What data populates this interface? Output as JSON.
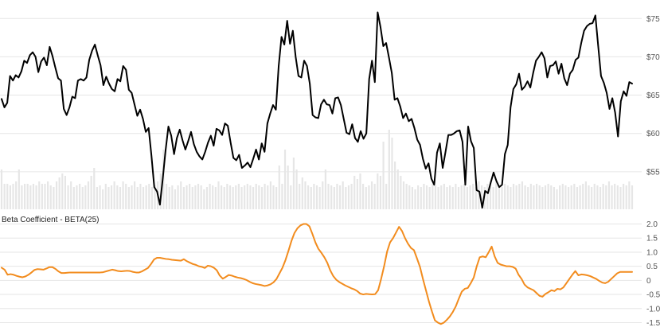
{
  "chart_data": [
    {
      "type": "line",
      "title": "",
      "y_unit": "$",
      "ylim": [
        50,
        77
      ],
      "yticks": [
        {
          "value": 55,
          "label": "$55"
        },
        {
          "value": 60,
          "label": "$60"
        },
        {
          "value": 65,
          "label": "$65"
        },
        {
          "value": 70,
          "label": "$70"
        },
        {
          "value": 75,
          "label": "$75"
        }
      ],
      "grid": true,
      "colors": {
        "price": "#000000",
        "volume": "#e6e6e6"
      },
      "price": [
        64.5,
        63.4,
        64.0,
        67.5,
        66.9,
        67.6,
        67.3,
        68.1,
        69.5,
        69.2,
        70.2,
        70.6,
        70.0,
        68.0,
        69.4,
        69.9,
        68.9,
        71.3,
        70.1,
        68.6,
        67.2,
        66.9,
        63.2,
        62.4,
        63.4,
        64.8,
        64.6,
        66.9,
        67.1,
        66.9,
        67.3,
        69.6,
        70.8,
        71.6,
        70.2,
        68.9,
        66.3,
        67.4,
        66.5,
        65.8,
        65.5,
        67.1,
        66.8,
        68.8,
        68.3,
        65.7,
        65.3,
        63.8,
        62.3,
        63.1,
        61.9,
        60.2,
        60.7,
        57.1,
        53.0,
        52.4,
        50.7,
        54.1,
        57.8,
        60.9,
        59.7,
        57.3,
        59.4,
        60.5,
        59.1,
        57.9,
        59.0,
        60.2,
        58.6,
        57.6,
        57.0,
        56.6,
        57.6,
        58.8,
        59.7,
        58.4,
        60.6,
        60.4,
        59.8,
        61.3,
        61.0,
        58.8,
        56.8,
        56.5,
        57.2,
        55.5,
        55.8,
        56.2,
        55.6,
        56.7,
        57.9,
        56.6,
        58.7,
        57.6,
        61.3,
        62.6,
        63.7,
        63.1,
        68.8,
        72.6,
        71.6,
        74.7,
        71.7,
        73.4,
        70.0,
        67.5,
        67.3,
        69.5,
        68.8,
        66.5,
        62.4,
        62.1,
        62.0,
        63.8,
        64.4,
        63.8,
        63.7,
        62.6,
        64.6,
        64.7,
        63.7,
        61.9,
        60.1,
        59.9,
        61.2,
        59.4,
        58.9,
        60.3,
        59.3,
        60.0,
        67.1,
        69.5,
        66.7,
        75.8,
        73.9,
        71.4,
        71.8,
        69.9,
        67.9,
        64.4,
        64.6,
        63.5,
        62.0,
        62.6,
        61.6,
        61.9,
        60.7,
        59.2,
        58.5,
        56.7,
        55.4,
        56.1,
        54.1,
        53.3,
        57.5,
        58.7,
        55.5,
        57.6,
        59.8,
        59.8,
        60.0,
        60.3,
        60.4,
        58.9,
        53.3,
        60.9,
        59.0,
        58.1,
        52.6,
        52.4,
        50.3,
        52.5,
        52.2,
        53.6,
        54.9,
        53.8,
        53.0,
        53.3,
        57.3,
        58.5,
        63.4,
        65.8,
        66.4,
        67.8,
        65.7,
        66.1,
        66.8,
        66.0,
        67.9,
        69.5,
        70.0,
        70.6,
        69.8,
        67.3,
        68.8,
        68.9,
        69.4,
        67.8,
        69.1,
        67.2,
        66.3,
        67.8,
        68.3,
        69.6,
        69.9,
        71.8,
        73.4,
        74.0,
        74.3,
        74.4,
        75.4,
        71.4,
        67.5,
        66.6,
        65.3,
        63.2,
        64.6,
        62.7,
        59.6,
        64.2,
        65.5,
        64.9,
        66.7,
        66.5
      ],
      "volume": [
        0.5,
        0.32,
        0.32,
        0.3,
        0.32,
        0.35,
        0.5,
        0.3,
        0.32,
        0.32,
        0.3,
        0.32,
        0.3,
        0.35,
        0.32,
        0.32,
        0.35,
        0.3,
        0.28,
        0.35,
        0.4,
        0.45,
        0.42,
        0.3,
        0.35,
        0.28,
        0.3,
        0.32,
        0.28,
        0.3,
        0.35,
        0.42,
        0.52,
        0.28,
        0.3,
        0.25,
        0.32,
        0.28,
        0.3,
        0.35,
        0.3,
        0.28,
        0.35,
        0.32,
        0.28,
        0.3,
        0.35,
        0.28,
        0.32,
        0.28,
        0.3,
        0.32,
        0.28,
        0.3,
        0.35,
        0.45,
        0.75,
        0.32,
        0.28,
        0.3,
        0.25,
        0.3,
        0.35,
        0.28,
        0.3,
        0.32,
        0.28,
        0.3,
        0.32,
        0.3,
        0.25,
        0.28,
        0.32,
        0.3,
        0.28,
        0.35,
        0.3,
        0.28,
        0.32,
        0.3,
        0.28,
        0.3,
        0.32,
        0.28,
        0.3,
        0.32,
        0.3,
        0.28,
        0.32,
        0.3,
        0.28,
        0.32,
        0.3,
        0.35,
        0.3,
        0.28,
        0.55,
        0.32,
        0.75,
        0.55,
        0.3,
        0.65,
        0.5,
        0.32,
        0.4,
        0.35,
        0.3,
        0.28,
        0.32,
        0.3,
        0.28,
        0.35,
        0.5,
        0.32,
        0.3,
        0.28,
        0.32,
        0.3,
        0.35,
        0.28,
        0.3,
        0.32,
        0.42,
        0.38,
        0.45,
        0.32,
        0.28,
        0.3,
        0.35,
        0.32,
        0.45,
        0.42,
        0.85,
        0.32,
        1.0,
        0.9,
        0.6,
        0.5,
        0.42,
        0.35,
        0.32,
        0.3,
        0.28,
        0.25,
        0.3,
        0.28,
        0.32,
        0.3,
        0.28,
        0.32,
        0.3,
        0.28,
        0.3,
        0.32,
        0.28,
        0.3,
        0.28,
        0.32,
        0.28,
        0.3,
        0.32,
        0.28,
        0.3,
        0.32,
        0.28,
        0.35,
        0.3,
        0.28,
        0.32,
        0.3,
        0.28,
        0.35,
        0.3,
        0.28,
        0.32,
        0.3,
        0.28,
        0.32,
        0.3,
        0.32,
        0.35,
        0.3,
        0.28,
        0.32,
        0.3,
        0.32,
        0.3,
        0.28,
        0.3,
        0.32,
        0.3,
        0.28,
        0.25,
        0.3,
        0.32,
        0.3,
        0.28,
        0.3,
        0.32,
        0.28,
        0.3,
        0.32,
        0.35,
        0.3,
        0.28,
        0.32,
        0.3,
        0.28,
        0.32,
        0.3,
        0.35,
        0.3,
        0.32,
        0.3,
        0.28,
        0.32,
        0.3,
        0.35,
        0.3
      ]
    },
    {
      "type": "line",
      "title": "Beta Coefficient - BETA(25)",
      "ylim": [
        -1.6,
        2.1
      ],
      "yticks": [
        {
          "value": 2.0,
          "label": "2.0"
        },
        {
          "value": 1.5,
          "label": "1.5"
        },
        {
          "value": 1.0,
          "label": "1.0"
        },
        {
          "value": 0.5,
          "label": "0.5"
        },
        {
          "value": 0,
          "label": "0"
        },
        {
          "value": -0.5,
          "label": "-0.5"
        },
        {
          "value": -1.0,
          "label": "-1.0"
        },
        {
          "value": -1.5,
          "label": "-1.5"
        }
      ],
      "grid": true,
      "series": [
        {
          "color": "#f28c1e",
          "values": [
            0.45,
            0.38,
            0.2,
            0.22,
            0.2,
            0.16,
            0.13,
            0.11,
            0.14,
            0.2,
            0.28,
            0.37,
            0.4,
            0.39,
            0.38,
            0.42,
            0.47,
            0.47,
            0.41,
            0.32,
            0.26,
            0.26,
            0.27,
            0.28,
            0.28,
            0.28,
            0.28,
            0.28,
            0.28,
            0.28,
            0.28,
            0.28,
            0.28,
            0.28,
            0.29,
            0.32,
            0.35,
            0.38,
            0.36,
            0.33,
            0.32,
            0.33,
            0.34,
            0.33,
            0.3,
            0.28,
            0.28,
            0.32,
            0.38,
            0.44,
            0.58,
            0.74,
            0.8,
            0.8,
            0.78,
            0.76,
            0.75,
            0.73,
            0.72,
            0.71,
            0.7,
            0.75,
            0.68,
            0.63,
            0.58,
            0.55,
            0.5,
            0.48,
            0.44,
            0.52,
            0.5,
            0.45,
            0.36,
            0.17,
            0.06,
            0.12,
            0.19,
            0.17,
            0.13,
            0.1,
            0.08,
            0.05,
            0.01,
            -0.05,
            -0.1,
            -0.13,
            -0.15,
            -0.17,
            -0.2,
            -0.18,
            -0.14,
            -0.07,
            0.05,
            0.25,
            0.45,
            0.72,
            1.05,
            1.4,
            1.68,
            1.85,
            1.95,
            2.0,
            2.0,
            1.92,
            1.65,
            1.35,
            1.12,
            0.98,
            0.82,
            0.62,
            0.35,
            0.15,
            0.02,
            -0.06,
            -0.12,
            -0.18,
            -0.23,
            -0.28,
            -0.32,
            -0.38,
            -0.47,
            -0.5,
            -0.48,
            -0.49,
            -0.5,
            -0.49,
            -0.35,
            0.05,
            0.5,
            1.02,
            1.35,
            1.5,
            1.7,
            1.9,
            1.75,
            1.5,
            1.3,
            1.15,
            1.07,
            0.78,
            0.48,
            0.05,
            -0.35,
            -0.75,
            -1.1,
            -1.42,
            -1.5,
            -1.55,
            -1.5,
            -1.4,
            -1.28,
            -1.12,
            -0.92,
            -0.65,
            -0.4,
            -0.3,
            -0.27,
            -0.1,
            0.1,
            0.5,
            0.82,
            0.85,
            0.82,
            1.0,
            1.2,
            0.85,
            0.62,
            0.56,
            0.53,
            0.5,
            0.5,
            0.48,
            0.42,
            0.2,
            0.05,
            -0.15,
            -0.25,
            -0.3,
            -0.35,
            -0.45,
            -0.55,
            -0.58,
            -0.48,
            -0.42,
            -0.35,
            -0.38,
            -0.3,
            -0.32,
            -0.25,
            -0.1,
            0.05,
            0.2,
            0.33,
            0.18,
            0.21,
            0.2,
            0.18,
            0.15,
            0.1,
            0.05,
            -0.02,
            -0.08,
            -0.1,
            -0.05,
            0.05,
            0.15,
            0.25,
            0.3,
            0.3,
            0.3,
            0.3,
            0.3
          ]
        }
      ]
    }
  ]
}
